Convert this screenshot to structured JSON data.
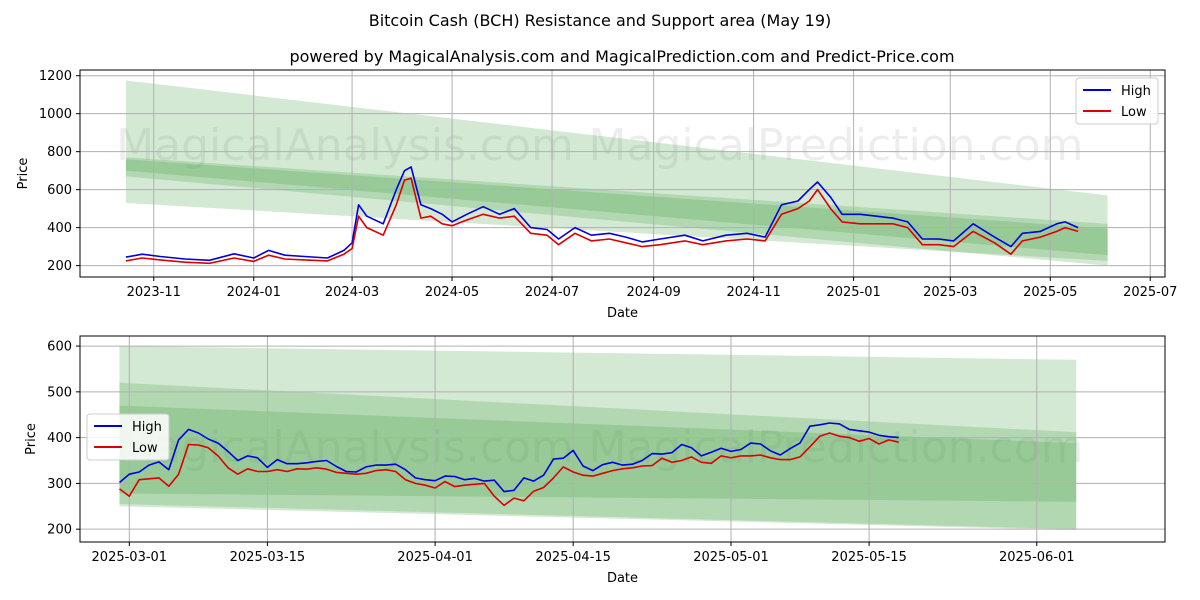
{
  "title": "Bitcoin Cash (BCH) Resistance and Support area (May 19)",
  "subtitle": "powered by MagicalAnalysis.com and MagicalPrediction.com and Predict-Price.com",
  "watermarks": [
    "MagicalAnalysis.com",
    "MagicalPrediction.com"
  ],
  "colors": {
    "high": "#0000dd",
    "low": "#dd0000",
    "band": "#3a9a3a",
    "grid": "#b0b0b0"
  },
  "chart_data": [
    {
      "type": "line",
      "xlabel": "Date",
      "ylabel": "Price",
      "xlim": [
        "2023-09-17",
        "2025-07-10"
      ],
      "ylim": [
        140,
        1230
      ],
      "yticks": [
        200,
        400,
        600,
        800,
        1000,
        1200
      ],
      "xticks": [
        "2023-11",
        "2024-01",
        "2024-03",
        "2024-05",
        "2024-07",
        "2024-09",
        "2024-11",
        "2025-01",
        "2025-03",
        "2025-05",
        "2025-07"
      ],
      "grid": true,
      "legend": "top-right",
      "bands": [
        {
          "start": "2023-10-15",
          "end": "2025-06-05",
          "lower": [
            530,
            225
          ],
          "upper": [
            1175,
            570
          ],
          "opacity": 0.22
        },
        {
          "start": "2023-10-15",
          "end": "2025-06-05",
          "lower": [
            670,
            200
          ],
          "upper": [
            770,
            420
          ],
          "opacity": 0.22
        },
        {
          "start": "2023-10-15",
          "end": "2025-06-05",
          "lower": [
            700,
            255
          ],
          "upper": [
            760,
            395
          ],
          "opacity": 0.22
        },
        {
          "start": "2024-03-01",
          "end": "2025-06-05",
          "lower": [
            225,
            225
          ],
          "upper": [
            225,
            225
          ],
          "opacity": 0.0
        }
      ],
      "x": [
        "2023-10-15",
        "2023-10-25",
        "2023-11-05",
        "2023-11-20",
        "2023-12-05",
        "2023-12-20",
        "2024-01-01",
        "2024-01-10",
        "2024-01-20",
        "2024-02-01",
        "2024-02-15",
        "2024-02-25",
        "2024-03-01",
        "2024-03-05",
        "2024-03-10",
        "2024-03-20",
        "2024-03-28",
        "2024-04-02",
        "2024-04-06",
        "2024-04-12",
        "2024-04-18",
        "2024-04-25",
        "2024-05-01",
        "2024-05-10",
        "2024-05-20",
        "2024-05-30",
        "2024-06-08",
        "2024-06-18",
        "2024-06-28",
        "2024-07-05",
        "2024-07-15",
        "2024-07-25",
        "2024-08-05",
        "2024-08-15",
        "2024-08-25",
        "2024-09-05",
        "2024-09-20",
        "2024-10-01",
        "2024-10-15",
        "2024-10-28",
        "2024-11-08",
        "2024-11-18",
        "2024-11-28",
        "2024-12-05",
        "2024-12-10",
        "2024-12-18",
        "2024-12-25",
        "2025-01-05",
        "2025-01-15",
        "2025-01-25",
        "2025-02-03",
        "2025-02-12",
        "2025-02-22",
        "2025-03-03",
        "2025-03-15",
        "2025-03-28",
        "2025-04-07",
        "2025-04-14",
        "2025-04-25",
        "2025-05-05",
        "2025-05-10",
        "2025-05-18"
      ],
      "series": [
        {
          "name": "High",
          "values": [
            245,
            260,
            248,
            235,
            228,
            262,
            240,
            280,
            255,
            248,
            240,
            280,
            320,
            520,
            460,
            420,
            600,
            700,
            720,
            520,
            500,
            470,
            430,
            470,
            510,
            470,
            500,
            400,
            390,
            340,
            400,
            360,
            370,
            350,
            325,
            340,
            360,
            330,
            360,
            370,
            350,
            520,
            540,
            600,
            640,
            560,
            470,
            470,
            460,
            450,
            430,
            340,
            340,
            330,
            420,
            350,
            300,
            370,
            380,
            420,
            430,
            400
          ]
        },
        {
          "name": "Low",
          "values": [
            225,
            240,
            230,
            218,
            212,
            240,
            222,
            255,
            235,
            230,
            225,
            260,
            290,
            460,
            400,
            360,
            520,
            650,
            660,
            450,
            460,
            420,
            410,
            440,
            470,
            450,
            460,
            370,
            360,
            310,
            370,
            330,
            340,
            320,
            300,
            310,
            330,
            310,
            330,
            340,
            330,
            470,
            500,
            540,
            600,
            500,
            430,
            420,
            420,
            420,
            400,
            310,
            310,
            300,
            380,
            320,
            260,
            330,
            350,
            380,
            400,
            380
          ]
        }
      ]
    },
    {
      "type": "line",
      "xlabel": "Date",
      "ylabel": "Price",
      "xlim": [
        "2025-02-24",
        "2025-06-14"
      ],
      "ylim": [
        172,
        622
      ],
      "yticks": [
        200,
        300,
        400,
        500,
        600
      ],
      "xticks": [
        "2025-03-01",
        "2025-03-15",
        "2025-04-01",
        "2025-04-15",
        "2025-05-01",
        "2025-05-15",
        "2025-06-01"
      ],
      "grid": true,
      "legend": "center-left",
      "bands": [
        {
          "start": "2025-02-28",
          "end": "2025-06-05",
          "lower": [
            255,
            200
          ],
          "upper": [
            600,
            570
          ],
          "opacity": 0.22
        },
        {
          "start": "2025-02-28",
          "end": "2025-06-05",
          "lower": [
            250,
            198
          ],
          "upper": [
            520,
            412
          ],
          "opacity": 0.22
        },
        {
          "start": "2025-02-28",
          "end": "2025-06-05",
          "lower": [
            278,
            260
          ],
          "upper": [
            470,
            388
          ],
          "opacity": 0.22
        }
      ],
      "x": [
        "2025-02-28",
        "2025-03-01",
        "2025-03-02",
        "2025-03-03",
        "2025-03-04",
        "2025-03-05",
        "2025-03-06",
        "2025-03-07",
        "2025-03-08",
        "2025-03-09",
        "2025-03-10",
        "2025-03-11",
        "2025-03-12",
        "2025-03-13",
        "2025-03-14",
        "2025-03-15",
        "2025-03-16",
        "2025-03-17",
        "2025-03-18",
        "2025-03-19",
        "2025-03-20",
        "2025-03-21",
        "2025-03-22",
        "2025-03-23",
        "2025-03-24",
        "2025-03-25",
        "2025-03-26",
        "2025-03-27",
        "2025-03-28",
        "2025-03-29",
        "2025-03-30",
        "2025-03-31",
        "2025-04-01",
        "2025-04-02",
        "2025-04-03",
        "2025-04-04",
        "2025-04-05",
        "2025-04-06",
        "2025-04-07",
        "2025-04-08",
        "2025-04-09",
        "2025-04-10",
        "2025-04-11",
        "2025-04-12",
        "2025-04-13",
        "2025-04-14",
        "2025-04-15",
        "2025-04-16",
        "2025-04-17",
        "2025-04-18",
        "2025-04-19",
        "2025-04-20",
        "2025-04-21",
        "2025-04-22",
        "2025-04-23",
        "2025-04-24",
        "2025-04-25",
        "2025-04-26",
        "2025-04-27",
        "2025-04-28",
        "2025-04-29",
        "2025-04-30",
        "2025-05-01",
        "2025-05-02",
        "2025-05-03",
        "2025-05-04",
        "2025-05-05",
        "2025-05-06",
        "2025-05-07",
        "2025-05-08",
        "2025-05-09",
        "2025-05-10",
        "2025-05-11",
        "2025-05-12",
        "2025-05-13",
        "2025-05-14",
        "2025-05-15",
        "2025-05-16",
        "2025-05-17",
        "2025-05-18"
      ],
      "series": [
        {
          "name": "High",
          "values": [
            302,
            320,
            325,
            340,
            347,
            330,
            395,
            418,
            410,
            397,
            388,
            370,
            350,
            360,
            356,
            335,
            352,
            343,
            343,
            345,
            348,
            350,
            337,
            326,
            325,
            336,
            340,
            340,
            342,
            330,
            312,
            308,
            306,
            316,
            315,
            308,
            311,
            305,
            307,
            282,
            285,
            312,
            305,
            318,
            353,
            355,
            372,
            338,
            328,
            341,
            346,
            340,
            342,
            350,
            365,
            364,
            367,
            385,
            378,
            360,
            368,
            377,
            370,
            374,
            388,
            386,
            371,
            362,
            376,
            388,
            425,
            428,
            432,
            430,
            418,
            415,
            412,
            405,
            402,
            400
          ]
        },
        {
          "name": "Low",
          "values": [
            288,
            272,
            308,
            310,
            312,
            294,
            320,
            385,
            384,
            378,
            360,
            334,
            320,
            332,
            326,
            326,
            330,
            326,
            332,
            331,
            334,
            331,
            324,
            322,
            320,
            322,
            328,
            330,
            326,
            308,
            300,
            296,
            290,
            304,
            293,
            296,
            298,
            300,
            272,
            252,
            268,
            262,
            283,
            291,
            312,
            336,
            325,
            318,
            316,
            322,
            328,
            332,
            334,
            338,
            339,
            355,
            346,
            350,
            358,
            346,
            344,
            360,
            356,
            360,
            360,
            362,
            356,
            352,
            352,
            358,
            380,
            403,
            410,
            403,
            400,
            392,
            398,
            386,
            395,
            390
          ]
        }
      ]
    }
  ]
}
